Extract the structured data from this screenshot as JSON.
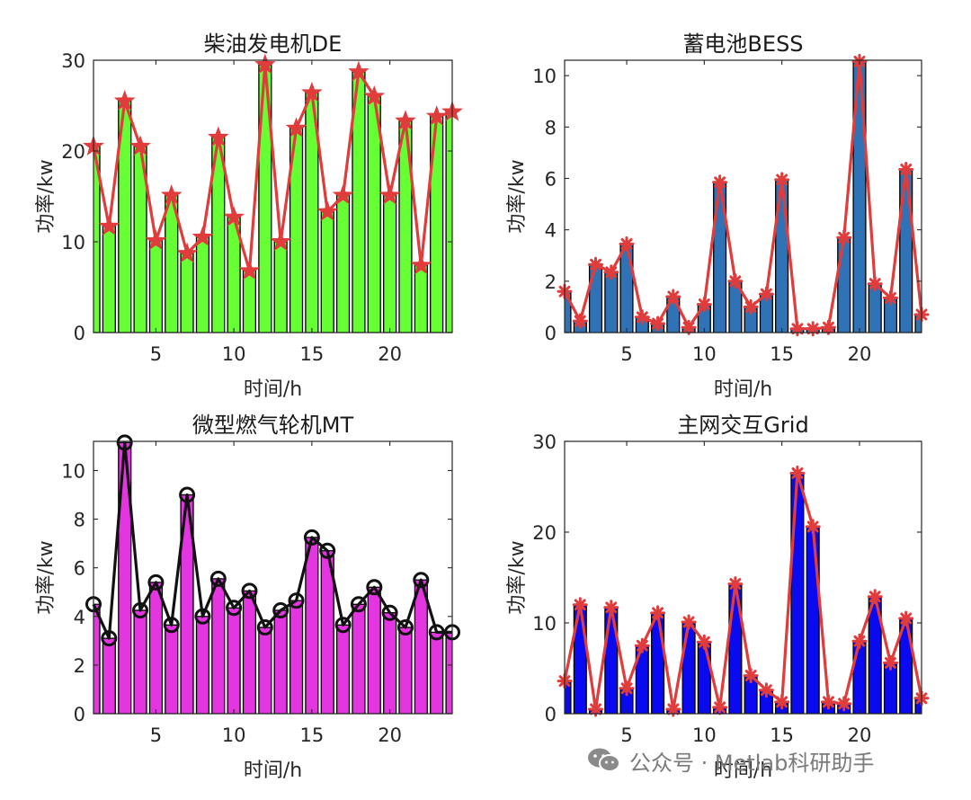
{
  "chart_data": [
    {
      "type": "bar",
      "title": "柴油发电机DE",
      "xlabel": "时间/h",
      "ylabel": "功率/kw",
      "x": [
        1,
        2,
        3,
        4,
        5,
        6,
        7,
        8,
        9,
        10,
        11,
        12,
        13,
        14,
        15,
        16,
        17,
        18,
        19,
        20,
        21,
        22,
        23,
        24
      ],
      "values": [
        20.5,
        11.7,
        25.5,
        20.5,
        10.1,
        15.1,
        8.7,
        10.5,
        21.5,
        12.7,
        6.8,
        29.5,
        10,
        22.5,
        26.4,
        13.3,
        15.1,
        28.7,
        26,
        15.1,
        23.3,
        7.4,
        23.8,
        24.3
      ],
      "xlim": [
        1,
        24
      ],
      "ylim": [
        0,
        30
      ],
      "xticks": [
        5,
        10,
        15,
        20
      ],
      "yticks": [
        0,
        10,
        20,
        30
      ],
      "bar_color": "#66ff33",
      "line_color": "#e03c3c",
      "marker": "star"
    },
    {
      "type": "bar",
      "title": "蓄电池BESS",
      "xlabel": "时间/h",
      "ylabel": "功率/kw",
      "x": [
        1,
        2,
        3,
        4,
        5,
        6,
        7,
        8,
        9,
        10,
        11,
        12,
        13,
        14,
        15,
        16,
        17,
        18,
        19,
        20,
        21,
        22,
        23,
        24
      ],
      "values": [
        1.6,
        0.45,
        2.65,
        2.35,
        3.45,
        0.6,
        0.35,
        1.4,
        0.2,
        1.1,
        5.85,
        2.0,
        1.0,
        1.5,
        5.95,
        0.15,
        0.15,
        0.2,
        3.7,
        10.55,
        1.9,
        1.35,
        6.35,
        0.7
      ],
      "xlim": [
        1,
        24
      ],
      "ylim": [
        0,
        10.6
      ],
      "xticks": [
        5,
        10,
        15,
        20
      ],
      "yticks": [
        0,
        2,
        4,
        6,
        8,
        10
      ],
      "bar_color": "#2f72b5",
      "line_color": "#e03c3c",
      "marker": "asterisk"
    },
    {
      "type": "bar",
      "title": "微型燃气轮机MT",
      "xlabel": "时间/h",
      "ylabel": "功率/kw",
      "x": [
        1,
        2,
        3,
        4,
        5,
        6,
        7,
        8,
        9,
        10,
        11,
        12,
        13,
        14,
        15,
        16,
        17,
        18,
        19,
        20,
        21,
        22,
        23,
        24
      ],
      "values": [
        4.5,
        3.1,
        11.15,
        4.25,
        5.4,
        3.65,
        9.0,
        4.0,
        5.55,
        4.35,
        5.05,
        3.55,
        4.25,
        4.65,
        7.25,
        6.7,
        3.65,
        4.5,
        5.2,
        4.15,
        3.55,
        5.5,
        3.35,
        3.35
      ],
      "xlim": [
        1,
        24
      ],
      "ylim": [
        0,
        11.2
      ],
      "xticks": [
        5,
        10,
        15,
        20
      ],
      "yticks": [
        0,
        2,
        4,
        6,
        8,
        10
      ],
      "bar_color": "#e436e0",
      "line_color": "#111111",
      "marker": "circle"
    },
    {
      "type": "bar",
      "title": "主网交互Grid",
      "xlabel": "时间/h",
      "ylabel": "功率/kw",
      "x": [
        1,
        2,
        3,
        4,
        5,
        6,
        7,
        8,
        9,
        10,
        11,
        12,
        13,
        14,
        15,
        16,
        17,
        18,
        19,
        20,
        21,
        22,
        23,
        24
      ],
      "values": [
        3.6,
        12,
        0.5,
        11.7,
        2.8,
        7.5,
        11.1,
        0.5,
        10.1,
        7.9,
        0.7,
        14.3,
        4.2,
        2.6,
        1.3,
        26.5,
        20.6,
        1.3,
        1.1,
        8,
        12.9,
        5.6,
        10.5,
        1.7
      ],
      "xlim": [
        1,
        24
      ],
      "ylim": [
        0,
        30
      ],
      "xticks": [
        5,
        10,
        15,
        20
      ],
      "yticks": [
        0,
        10,
        20,
        30
      ],
      "bar_color": "#0a0af0",
      "line_color": "#e03c3c",
      "marker": "asterisk"
    }
  ],
  "watermark": {
    "text": "公众号 · Metlab科研助手",
    "icon": "wechat-icon"
  }
}
